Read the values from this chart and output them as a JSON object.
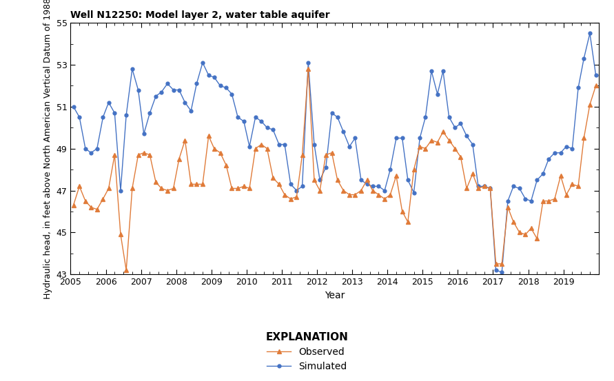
{
  "title": "Well N12250: Model layer 2, water table aquifer",
  "ylabel": "Hydraulic head, in feet above North American Vertical Datum of 1988",
  "xlabel": "Year",
  "ylim": [
    43,
    55
  ],
  "yticks": [
    43,
    45,
    47,
    49,
    51,
    53,
    55
  ],
  "legend_title": "EXPLANATION",
  "observed_label": "Observed",
  "simulated_label": "Simulated",
  "observed_color": "#e07b39",
  "simulated_color": "#4472c4",
  "background_color": "#ffffff",
  "observed_x": [
    2005.08,
    2005.25,
    2005.42,
    2005.58,
    2005.75,
    2005.92,
    2006.08,
    2006.25,
    2006.42,
    2006.58,
    2006.75,
    2006.92,
    2007.08,
    2007.25,
    2007.42,
    2007.58,
    2007.75,
    2007.92,
    2008.08,
    2008.25,
    2008.42,
    2008.58,
    2008.75,
    2008.92,
    2009.08,
    2009.25,
    2009.42,
    2009.58,
    2009.75,
    2009.92,
    2010.08,
    2010.25,
    2010.42,
    2010.58,
    2010.75,
    2010.92,
    2011.08,
    2011.25,
    2011.42,
    2011.58,
    2011.75,
    2011.92,
    2012.08,
    2012.25,
    2012.42,
    2012.58,
    2012.75,
    2012.92,
    2013.08,
    2013.25,
    2013.42,
    2013.58,
    2013.75,
    2013.92,
    2014.08,
    2014.25,
    2014.42,
    2014.58,
    2014.75,
    2014.92,
    2015.08,
    2015.25,
    2015.42,
    2015.58,
    2015.75,
    2015.92,
    2016.08,
    2016.25,
    2016.42,
    2016.58,
    2016.75,
    2016.92,
    2017.08,
    2017.25,
    2017.42,
    2017.58,
    2017.75,
    2017.92,
    2018.08,
    2018.25,
    2018.42,
    2018.58,
    2018.75,
    2018.92,
    2019.08,
    2019.25,
    2019.42,
    2019.58,
    2019.75,
    2019.92
  ],
  "observed_y": [
    46.3,
    47.2,
    46.5,
    46.2,
    46.1,
    46.6,
    47.1,
    48.7,
    44.9,
    43.2,
    47.1,
    48.7,
    48.8,
    48.7,
    47.4,
    47.1,
    47.0,
    47.1,
    48.5,
    49.4,
    47.3,
    47.3,
    47.3,
    49.6,
    49.0,
    48.8,
    48.2,
    47.1,
    47.1,
    47.2,
    47.1,
    49.0,
    49.2,
    49.0,
    47.6,
    47.3,
    46.8,
    46.6,
    46.7,
    48.7,
    52.8,
    47.5,
    47.0,
    48.7,
    48.8,
    47.5,
    47.0,
    46.8,
    46.8,
    47.0,
    47.5,
    47.0,
    46.8,
    46.6,
    46.8,
    47.7,
    46.0,
    45.5,
    48.0,
    49.1,
    49.0,
    49.4,
    49.3,
    49.8,
    49.4,
    49.0,
    48.6,
    47.1,
    47.8,
    47.1,
    47.2,
    47.1,
    43.5,
    43.5,
    46.2,
    45.5,
    45.0,
    44.9,
    45.2,
    44.7,
    46.5,
    46.5,
    46.6,
    47.7,
    46.8,
    47.3,
    47.2,
    49.5,
    51.1,
    52.0
  ],
  "simulated_x": [
    2005.08,
    2005.25,
    2005.42,
    2005.58,
    2005.75,
    2005.92,
    2006.08,
    2006.25,
    2006.42,
    2006.58,
    2006.75,
    2006.92,
    2007.08,
    2007.25,
    2007.42,
    2007.58,
    2007.75,
    2007.92,
    2008.08,
    2008.25,
    2008.42,
    2008.58,
    2008.75,
    2008.92,
    2009.08,
    2009.25,
    2009.42,
    2009.58,
    2009.75,
    2009.92,
    2010.08,
    2010.25,
    2010.42,
    2010.58,
    2010.75,
    2010.92,
    2011.08,
    2011.25,
    2011.42,
    2011.58,
    2011.75,
    2011.92,
    2012.08,
    2012.25,
    2012.42,
    2012.58,
    2012.75,
    2012.92,
    2013.08,
    2013.25,
    2013.42,
    2013.58,
    2013.75,
    2013.92,
    2014.08,
    2014.25,
    2014.42,
    2014.58,
    2014.75,
    2014.92,
    2015.08,
    2015.25,
    2015.42,
    2015.58,
    2015.75,
    2015.92,
    2016.08,
    2016.25,
    2016.42,
    2016.58,
    2016.75,
    2016.92,
    2017.08,
    2017.25,
    2017.42,
    2017.58,
    2017.75,
    2017.92,
    2018.08,
    2018.25,
    2018.42,
    2018.58,
    2018.75,
    2018.92,
    2019.08,
    2019.25,
    2019.42,
    2019.58,
    2019.75,
    2019.92
  ],
  "simulated_y": [
    51.0,
    50.5,
    49.0,
    48.8,
    49.0,
    50.5,
    51.2,
    50.7,
    47.0,
    50.6,
    52.8,
    51.8,
    49.7,
    50.7,
    51.5,
    51.7,
    52.1,
    51.8,
    51.8,
    51.2,
    50.8,
    52.1,
    53.1,
    52.5,
    52.4,
    52.0,
    51.9,
    51.6,
    50.5,
    50.3,
    49.1,
    50.5,
    50.3,
    50.0,
    49.9,
    49.2,
    49.2,
    47.3,
    47.0,
    47.2,
    53.1,
    49.2,
    47.5,
    48.1,
    50.7,
    50.5,
    49.8,
    49.1,
    49.5,
    47.5,
    47.3,
    47.2,
    47.2,
    47.0,
    48.0,
    49.5,
    49.5,
    47.5,
    46.9,
    49.5,
    50.5,
    52.7,
    51.6,
    52.7,
    50.5,
    50.0,
    50.2,
    49.6,
    49.2,
    47.2,
    47.2,
    47.1,
    43.2,
    43.1,
    46.5,
    47.2,
    47.1,
    46.6,
    46.5,
    47.5,
    47.8,
    48.5,
    48.8,
    48.8,
    49.1,
    49.0,
    51.9,
    53.3,
    54.5,
    52.5
  ]
}
